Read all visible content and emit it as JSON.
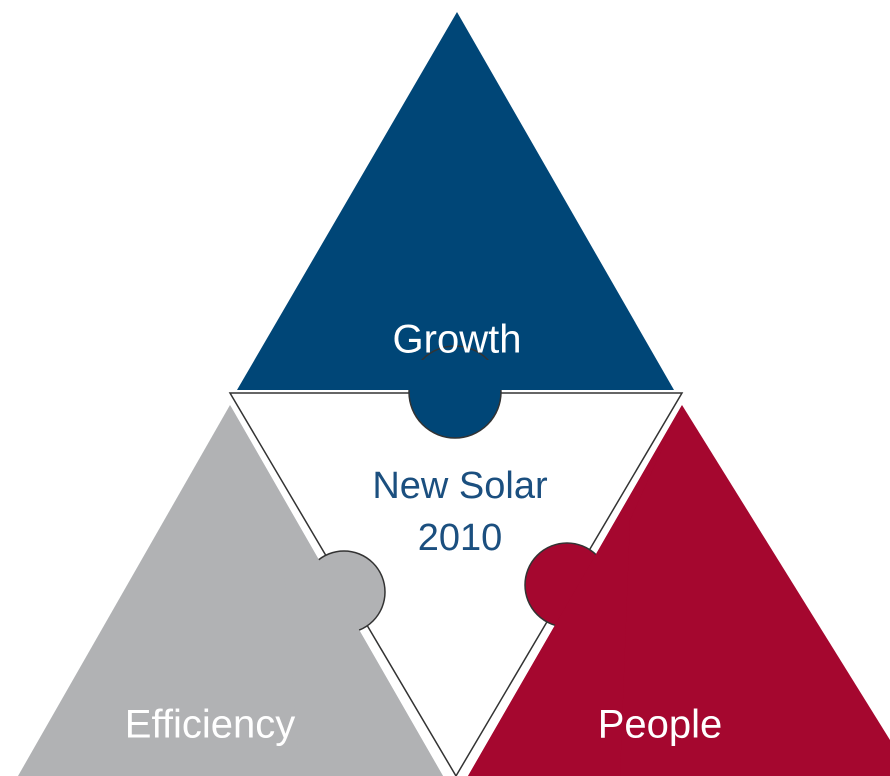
{
  "center": {
    "lines": [
      "New Solar",
      "2010"
    ]
  },
  "segments": [
    {
      "label": "Growth"
    },
    {
      "label": "Efficiency"
    },
    {
      "label": "People"
    }
  ]
}
